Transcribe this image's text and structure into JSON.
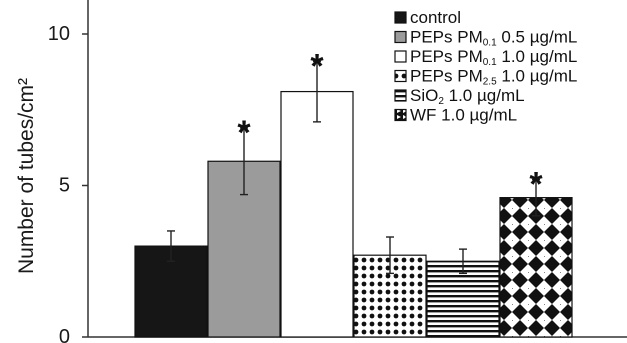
{
  "chart_data": {
    "type": "bar",
    "title": "",
    "xlabel": "",
    "ylabel": "Number of tubes/cm²",
    "ylim": [
      0,
      10
    ],
    "yticks": [
      "0",
      "5",
      "10"
    ],
    "grid": false,
    "legend_position": "top-right",
    "categories": [
      "control",
      "PEPs PM0.1 0.5 µg/mL",
      "PEPs PM0.1 1.0 µg/mL",
      "PEPs PM2.5 1.0 µg/mL",
      "SiO2 1.0 µg/mL",
      "WF 1.0 µg/mL"
    ],
    "values": [
      3.0,
      5.8,
      8.1,
      2.7,
      2.5,
      4.6
    ],
    "errors": [
      0.5,
      1.1,
      1.0,
      0.6,
      0.4,
      0.6
    ],
    "significant": [
      false,
      true,
      true,
      false,
      false,
      true
    ],
    "significance_marker": "*",
    "fills": [
      "solid-black",
      "solid-gray",
      "solid-white",
      "dots",
      "horizontal-stripes",
      "diamonds"
    ],
    "colors": {
      "black": "#161616",
      "gray": "#9b9b9b",
      "white": "#ffffff"
    },
    "legend": [
      {
        "pre": "control",
        "sub": "",
        "post": ""
      },
      {
        "pre": "PEPs PM",
        "sub": "0.1",
        "post": " 0.5 µg/mL"
      },
      {
        "pre": "PEPs PM",
        "sub": "0.1",
        "post": " 1.0 µg/mL"
      },
      {
        "pre": "PEPs PM",
        "sub": "2.5",
        "post": " 1.0 µg/mL"
      },
      {
        "pre": "SiO",
        "sub": "2",
        "post": " 1.0 µg/mL"
      },
      {
        "pre": "WF",
        "sub": "",
        "post": " 1.0 µg/mL"
      }
    ]
  }
}
